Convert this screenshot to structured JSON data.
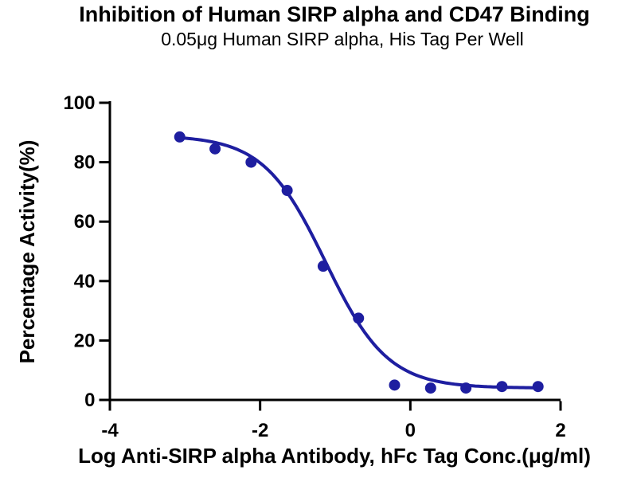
{
  "chart_data": {
    "type": "scatter",
    "title": "Inhibition of Human SIRP alpha and CD47 Binding",
    "subtitle": "0.05μg Human SIRP alpha, His Tag Per Well",
    "xlabel": "Log Anti-SIRP alpha Antibody, hFc Tag Conc.(μg/ml)",
    "ylabel": "Percentage Activity(%)",
    "xlim": [
      -4,
      2
    ],
    "ylim": [
      0,
      100
    ],
    "x_ticks": [
      "-4",
      "-2",
      "0",
      "2"
    ],
    "x_tick_values": [
      -4,
      -2,
      0,
      2
    ],
    "y_ticks": [
      "0",
      "20",
      "40",
      "60",
      "80",
      "100"
    ],
    "y_tick_values": [
      0,
      20,
      40,
      60,
      80,
      100
    ],
    "grid": false,
    "legend_position": "none",
    "axis_color": "#000000",
    "series": [
      {
        "name": "anti-SIRP-alpha-antibody",
        "marker": "circle",
        "marker_color": "#1e1ea0",
        "line_color": "#1e1ea0",
        "points_x": [
          -3.07,
          -2.6,
          -2.12,
          -1.64,
          -1.16,
          -0.69,
          -0.21,
          0.27,
          0.74,
          1.22,
          1.7
        ],
        "points_y": [
          88.5,
          84.5,
          80,
          70.5,
          45,
          27.5,
          5,
          4,
          4,
          4.5,
          4.5
        ],
        "fit_curve": {
          "model": "four-parameter-logistic",
          "top": 89,
          "bottom": 4,
          "logIC50": -1.13,
          "hillslope": 1.05,
          "x_start": -3.07,
          "x_end": 1.7
        }
      }
    ]
  }
}
